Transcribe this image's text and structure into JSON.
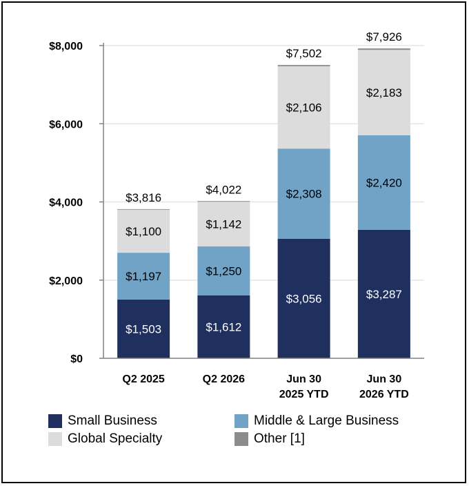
{
  "chart_data": {
    "type": "bar",
    "stacked": true,
    "categories": [
      [
        "Q2 2025"
      ],
      [
        "Q2 2026"
      ],
      [
        "Jun 30",
        "2025 YTD"
      ],
      [
        "Jun 30",
        "2026 YTD"
      ]
    ],
    "series": [
      {
        "name": "Small Business",
        "color": "#1f2f5e",
        "label_color": "#ffffff",
        "values": [
          1503,
          1612,
          3056,
          3287
        ],
        "labels": [
          "$1,503",
          "$1,612",
          "$3,056",
          "$3,287"
        ]
      },
      {
        "name": "Middle & Large Business",
        "color": "#70a3c6",
        "label_color": "#000000",
        "values": [
          1197,
          1250,
          2308,
          2420
        ],
        "labels": [
          "$1,197",
          "$1,250",
          "$2,308",
          "$2,420"
        ]
      },
      {
        "name": "Global Specialty",
        "color": "#dcdcdc",
        "label_color": "#000000",
        "values": [
          1100,
          1142,
          2106,
          2183
        ],
        "labels": [
          "$1,100",
          "$1,142",
          "$2,106",
          "$2,183"
        ]
      },
      {
        "name": "Other [1]",
        "color": "#8c8c8c",
        "label_color": "#000000",
        "values": [
          16,
          18,
          32,
          36
        ],
        "labels": []
      }
    ],
    "totals": [
      3816,
      4022,
      7502,
      7926
    ],
    "total_labels": [
      "$3,816",
      "$4,022",
      "$7,502",
      "$7,926"
    ],
    "yticks": [
      0,
      2000,
      4000,
      6000,
      8000
    ],
    "ytick_labels": [
      "$0",
      "$2,000",
      "$4,000",
      "$6,000",
      "$8,000"
    ],
    "ylim": [
      0,
      8000
    ],
    "grid": true,
    "legend_position": "bottom"
  },
  "legend": {
    "items": [
      {
        "label": "Small Business",
        "color": "#1f2f5e"
      },
      {
        "label": "Middle & Large Business",
        "color": "#70a3c6"
      },
      {
        "label": "Global Specialty",
        "color": "#dcdcdc"
      },
      {
        "label": "Other [1]",
        "color": "#8c8c8c"
      }
    ]
  }
}
